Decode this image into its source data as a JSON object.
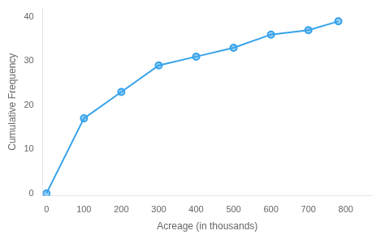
{
  "chart_data": {
    "type": "line",
    "x": [
      0,
      100,
      200,
      300,
      400,
      500,
      600,
      700,
      780
    ],
    "values": [
      0,
      17,
      23,
      29,
      31,
      33,
      36,
      37,
      39
    ],
    "xlabel": "Acreage (in thousands)",
    "ylabel": "Cumulative Frequency",
    "xlim": [
      -10,
      870
    ],
    "ylim": [
      -0.5,
      42
    ],
    "xticks": [
      0,
      100,
      200,
      300,
      400,
      500,
      600,
      700,
      800
    ],
    "yticks": [
      0,
      10,
      20,
      30,
      40
    ],
    "grid": false
  }
}
